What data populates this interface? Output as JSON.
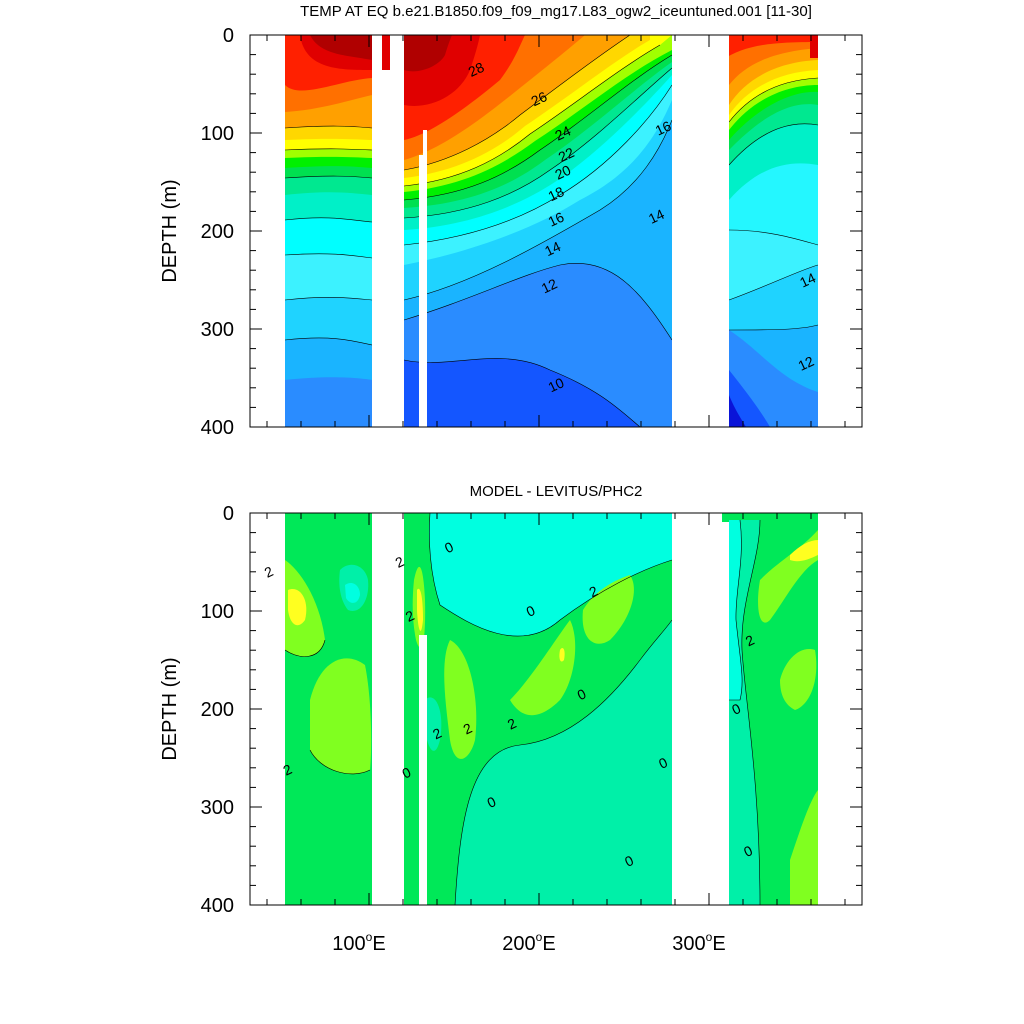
{
  "chart_data": [
    {
      "type": "heatmap",
      "title": "TEMP AT EQ b.e21.B1850.f09_f09_mg17.L83_ogw2_iceuntuned.001 [11-30]",
      "ylabel": "DEPTH (m)",
      "xlabel": "",
      "xlim": [
        30,
        390
      ],
      "ylim": [
        400,
        0
      ],
      "y_reversed": true,
      "x_ticks": [
        100,
        200,
        300
      ],
      "x_tick_labels": [
        "100",
        "200",
        "300"
      ],
      "y_ticks": [
        0,
        100,
        200,
        300,
        400
      ],
      "y_tick_labels": [
        "0",
        "100",
        "200",
        "300",
        "400"
      ],
      "land_gaps_lon": [
        [
          98,
          118
        ],
        [
          127,
          131
        ],
        [
          280,
          314
        ]
      ],
      "contour_labels": [
        {
          "text": "28",
          "lon": 163,
          "depth": 35
        },
        {
          "text": "26",
          "lon": 200,
          "depth": 65
        },
        {
          "text": "24",
          "lon": 214,
          "depth": 100
        },
        {
          "text": "22",
          "lon": 216,
          "depth": 122
        },
        {
          "text": "20",
          "lon": 214,
          "depth": 140
        },
        {
          "text": "18",
          "lon": 210,
          "depth": 162
        },
        {
          "text": "16",
          "lon": 210,
          "depth": 188
        },
        {
          "text": "14",
          "lon": 208,
          "depth": 218
        },
        {
          "text": "12",
          "lon": 206,
          "depth": 256
        },
        {
          "text": "10",
          "lon": 210,
          "depth": 357
        },
        {
          "text": "16",
          "lon": 273,
          "depth": 95
        },
        {
          "text": "14",
          "lon": 269,
          "depth": 185
        },
        {
          "text": "14",
          "lon": 358,
          "depth": 250
        },
        {
          "text": "12",
          "lon": 357,
          "depth": 335
        }
      ]
    },
    {
      "type": "heatmap",
      "title": "MODEL - LEVITUS/PHC2",
      "ylabel": "DEPTH (m)",
      "xlabel": "",
      "xlim": [
        30,
        390
      ],
      "ylim": [
        400,
        0
      ],
      "y_reversed": true,
      "x_ticks": [
        100,
        200,
        300
      ],
      "x_tick_labels": [
        "100",
        "200",
        "300"
      ],
      "y_ticks": [
        0,
        100,
        200,
        300,
        400
      ],
      "y_tick_labels": [
        "0",
        "100",
        "200",
        "300",
        "400"
      ],
      "land_gaps_lon": [
        [
          98,
          118
        ],
        [
          127,
          131
        ],
        [
          280,
          314
        ]
      ],
      "contour_labels": [
        {
          "text": "2",
          "lon": 41,
          "depth": 60
        },
        {
          "text": "2",
          "lon": 52,
          "depth": 262
        },
        {
          "text": "2",
          "lon": 118,
          "depth": 50
        },
        {
          "text": "2",
          "lon": 124,
          "depth": 105
        },
        {
          "text": "0",
          "lon": 147,
          "depth": 35
        },
        {
          "text": "2",
          "lon": 140,
          "depth": 225
        },
        {
          "text": "0",
          "lon": 122,
          "depth": 265
        },
        {
          "text": "2",
          "lon": 158,
          "depth": 220
        },
        {
          "text": "0",
          "lon": 195,
          "depth": 100
        },
        {
          "text": "2",
          "lon": 232,
          "depth": 80
        },
        {
          "text": "2",
          "lon": 184,
          "depth": 215
        },
        {
          "text": "0",
          "lon": 225,
          "depth": 185
        },
        {
          "text": "0",
          "lon": 172,
          "depth": 295
        },
        {
          "text": "0",
          "lon": 273,
          "depth": 255
        },
        {
          "text": "0",
          "lon": 253,
          "depth": 355
        },
        {
          "text": "2",
          "lon": 324,
          "depth": 130
        },
        {
          "text": "0",
          "lon": 316,
          "depth": 200
        },
        {
          "text": "0",
          "lon": 323,
          "depth": 345
        }
      ]
    }
  ],
  "colors": {
    "land": "#ffffff",
    "temp_scale": [
      "#0a14d8",
      "#1456ff",
      "#2a8cff",
      "#1ab4ff",
      "#1fd3ff",
      "#3cf2ff",
      "#00ffff",
      "#00f0c8",
      "#00e890",
      "#00e050",
      "#00f000",
      "#a0ff00",
      "#ffff00",
      "#ffd700",
      "#ffa000",
      "#ff7000",
      "#ff2000",
      "#e00000",
      "#b00000"
    ],
    "diff_scale": [
      "#00ffe0",
      "#00f0a8",
      "#00e858",
      "#80ff20",
      "#ffff20"
    ]
  }
}
